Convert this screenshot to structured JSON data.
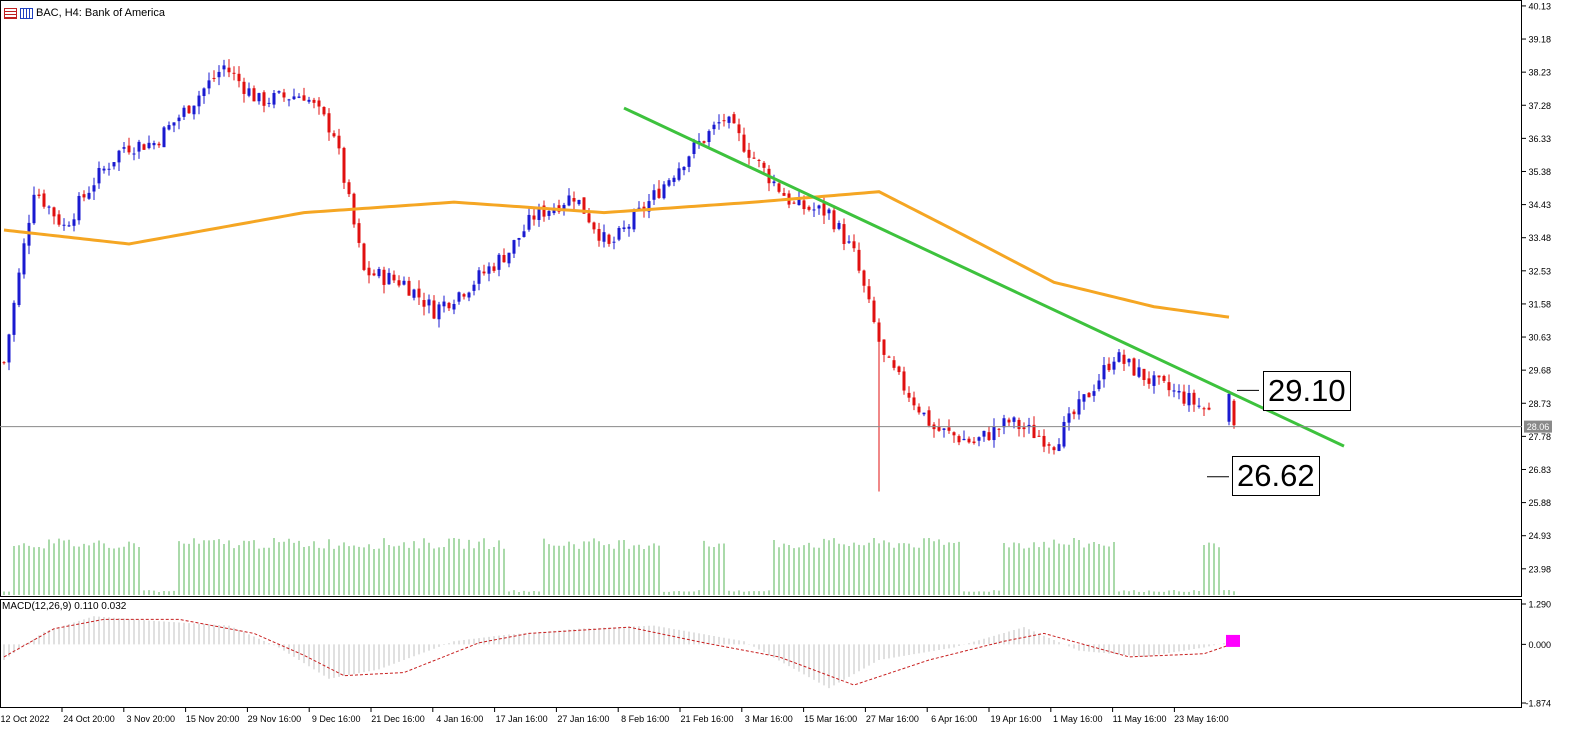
{
  "header": {
    "title": "BAC, H4: Bank of America"
  },
  "macd": {
    "label": "MACD(12,26,9) 0.110 0.032",
    "axis_ticks": [
      "1.290",
      "0.000",
      "-1.874"
    ]
  },
  "annotations": {
    "resistance_value": "29.10",
    "support_value": "26.62"
  },
  "current_price_label": "28.06",
  "colors": {
    "bull": "#1a1ad0",
    "bear": "#e01010",
    "ma": "#f5a623",
    "trendline": "#3dc23d",
    "volume": "#55b455",
    "macd_hist": "#c0c0c0",
    "macd_signal": "#c82020",
    "macd_marker": "#ff00ff"
  },
  "chart_data": [
    {
      "type": "candlestick",
      "title": "BAC, H4: Bank of America",
      "x_tick_labels": [
        "12 Oct 2022",
        "24 Oct 20:00",
        "3 Nov 20:00",
        "15 Nov 20:00",
        "29 Nov 16:00",
        "9 Dec 16:00",
        "21 Dec 16:00",
        "4 Jan 16:00",
        "17 Jan 16:00",
        "27 Jan 16:00",
        "8 Feb 16:00",
        "21 Feb 16:00",
        "3 Mar 16:00",
        "15 Mar 16:00",
        "27 Mar 16:00",
        "6 Apr 16:00",
        "19 Apr 16:00",
        "1 May 16:00",
        "11 May 16:00",
        "23 May 16:00"
      ],
      "y_tick_labels": [
        "40.13",
        "39.18",
        "38.23",
        "37.28",
        "36.33",
        "35.38",
        "34.43",
        "33.48",
        "32.53",
        "31.58",
        "30.63",
        "29.68",
        "28.73",
        "27.78",
        "26.83",
        "25.88",
        "24.93",
        "23.98"
      ],
      "ylim": [
        23.2,
        40.3
      ],
      "close_path_index": [
        0,
        6,
        12,
        18,
        24,
        30,
        36,
        44,
        51,
        60,
        66,
        72,
        80,
        86,
        93,
        101,
        106,
        114,
        121,
        129,
        137,
        144,
        152,
        158,
        165,
        170,
        176,
        186,
        194,
        201,
        210,
        215,
        222,
        230,
        236,
        241
      ],
      "close_path_value": [
        29.9,
        34.9,
        33.8,
        35.1,
        36.1,
        36.2,
        37.1,
        38.4,
        37.4,
        37.6,
        36.5,
        32.5,
        32.2,
        31.4,
        32.1,
        33.1,
        34.1,
        34.7,
        33.2,
        34.5,
        35.9,
        36.9,
        35.4,
        34.4,
        34.2,
        33.0,
        30.0,
        28.0,
        27.6,
        28.2,
        27.6,
        28.6,
        30.1,
        29.3,
        28.9,
        28.5
      ],
      "extra_candles": [
        {
          "index": 245,
          "open": 28.2,
          "close": 29.0,
          "high": 29.1,
          "low": 28.1
        },
        {
          "index": 246,
          "open": 28.8,
          "close": 28.1,
          "high": 28.85,
          "low": 28.0
        }
      ],
      "lowest_low": {
        "index": 175,
        "value": 26.2
      },
      "series": [
        {
          "indicator": "moving_average",
          "x": [
            0,
            25,
            60,
            90,
            120,
            150,
            175,
            190,
            210,
            230,
            245
          ],
          "values": [
            33.7,
            33.3,
            34.2,
            34.5,
            34.2,
            34.5,
            34.8,
            33.7,
            32.2,
            31.5,
            31.2
          ]
        },
        {
          "indicator": "trendline",
          "x": [
            124,
            268
          ],
          "values": [
            37.2,
            27.5
          ]
        }
      ],
      "current_price": 28.06,
      "annotations": [
        {
          "text": "29.10",
          "index": 245,
          "value": 29.1
        },
        {
          "text": "26.62",
          "index": 239,
          "value": 26.62
        }
      ]
    },
    {
      "type": "bar",
      "indicator": "volume",
      "bar_count": 246,
      "active_blocks": [
        [
          2,
          27
        ],
        [
          35,
          100
        ],
        [
          108,
          131
        ],
        [
          140,
          144
        ],
        [
          154,
          191
        ],
        [
          200,
          222
        ],
        [
          240,
          243
        ]
      ],
      "level_range": [
        0.28,
        0.34
      ]
    },
    {
      "type": "area",
      "indicator": "MACD(12,26,9)",
      "title": "MACD(12,26,9) 0.110 0.032",
      "ylim": [
        -1.874,
        1.29
      ],
      "histogram_index": [
        0,
        8,
        18,
        30,
        45,
        55,
        65,
        75,
        90,
        100,
        115,
        130,
        148,
        165,
        175,
        190,
        204,
        215,
        228,
        240,
        246
      ],
      "histogram_value": [
        -0.5,
        0.4,
        0.9,
        0.75,
        0.6,
        -0.1,
        -1.1,
        -0.8,
        0.1,
        0.3,
        0.5,
        0.6,
        0.1,
        -1.4,
        -0.5,
        -0.1,
        0.55,
        -0.2,
        -0.4,
        -0.1,
        0.11
      ],
      "signal_index": [
        0,
        10,
        20,
        35,
        50,
        60,
        68,
        80,
        95,
        105,
        125,
        140,
        155,
        170,
        185,
        200,
        208,
        225,
        240,
        246
      ],
      "signal_value": [
        -0.4,
        0.5,
        0.8,
        0.8,
        0.35,
        -0.35,
        -1.0,
        -0.9,
        0.05,
        0.35,
        0.55,
        0.05,
        -0.4,
        -1.3,
        -0.5,
        0.1,
        0.35,
        -0.4,
        -0.3,
        0.03
      ],
      "last_values": {
        "macd": 0.11,
        "signal": 0.032
      }
    }
  ]
}
